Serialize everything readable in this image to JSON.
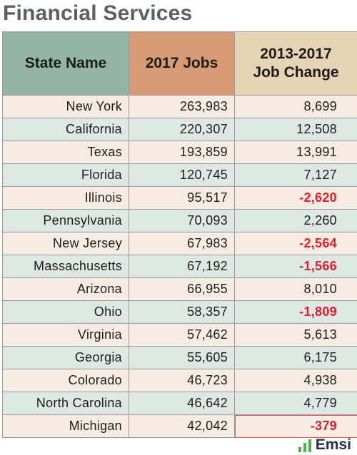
{
  "chart_data": {
    "type": "table",
    "title": "Financial Services",
    "columns": [
      "State Name",
      "2017 Jobs",
      "2013-2017 Job Change"
    ],
    "rows": [
      {
        "state": "New York",
        "jobs": "263,983",
        "change": "8,699",
        "negative": false
      },
      {
        "state": "California",
        "jobs": "220,307",
        "change": "12,508",
        "negative": false
      },
      {
        "state": "Texas",
        "jobs": "193,859",
        "change": "13,991",
        "negative": false
      },
      {
        "state": "Florida",
        "jobs": "120,745",
        "change": "7,127",
        "negative": false
      },
      {
        "state": "Illinois",
        "jobs": "95,517",
        "change": "-2,620",
        "negative": true
      },
      {
        "state": "Pennsylvania",
        "jobs": "70,093",
        "change": "2,260",
        "negative": false
      },
      {
        "state": "New Jersey",
        "jobs": "67,983",
        "change": "-2,564",
        "negative": true
      },
      {
        "state": "Massachusetts",
        "jobs": "67,192",
        "change": "-1,566",
        "negative": true
      },
      {
        "state": "Arizona",
        "jobs": "66,955",
        "change": "8,010",
        "negative": false
      },
      {
        "state": "Ohio",
        "jobs": "58,357",
        "change": "-1,809",
        "negative": true
      },
      {
        "state": "Virginia",
        "jobs": "57,462",
        "change": "5,613",
        "negative": false
      },
      {
        "state": "Georgia",
        "jobs": "55,605",
        "change": "6,175",
        "negative": false
      },
      {
        "state": "Colorado",
        "jobs": "46,723",
        "change": "4,938",
        "negative": false
      },
      {
        "state": "North Carolina",
        "jobs": "46,642",
        "change": "4,779",
        "negative": false
      },
      {
        "state": "Michigan",
        "jobs": "42,042",
        "change": "-379",
        "negative": true
      }
    ]
  },
  "header": {
    "col1": "State Name",
    "col2": "2017 Jobs",
    "col3_line1": "2013-2017",
    "col3_line2": "Job Change"
  },
  "logo": {
    "text": "Emsi",
    "icon": "bar-chart-icon"
  },
  "colors": {
    "header_state": "#94b4a7",
    "header_jobs": "#d79a73",
    "header_change": "#e6d4b4",
    "row_light": "#f7ece2",
    "row_mint": "#dee8e3",
    "negative": "#e0202c",
    "title": "#5c6060"
  }
}
